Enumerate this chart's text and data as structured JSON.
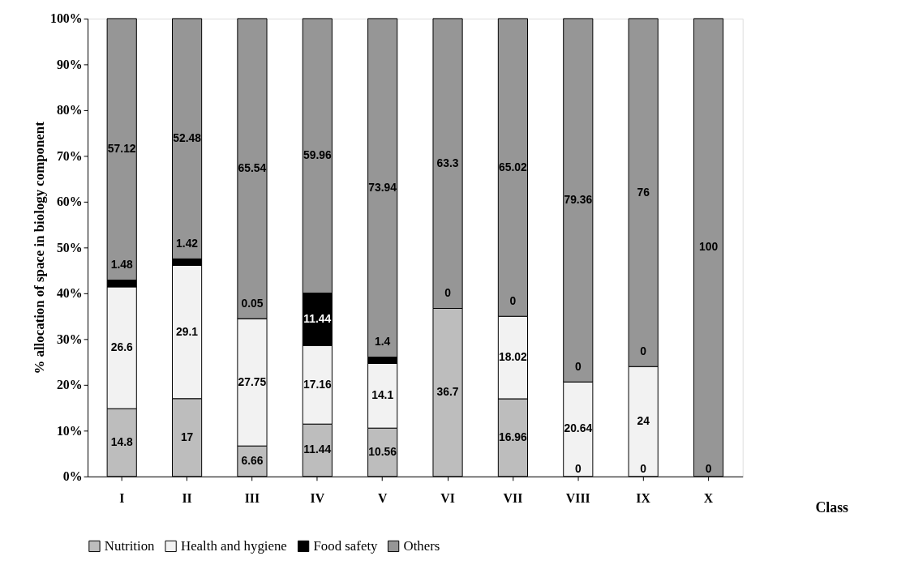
{
  "chart_data": {
    "type": "bar",
    "stacked": true,
    "ylabel": "% allocation of space in biology component",
    "xlabel": "Class",
    "categories": [
      "I",
      "II",
      "III",
      "IV",
      "V",
      "VI",
      "VII",
      "VIII",
      "IX",
      "X"
    ],
    "series": [
      {
        "name": "Nutrition",
        "color": "#bdbdbd",
        "values": [
          14.8,
          17,
          6.66,
          11.44,
          10.56,
          36.7,
          16.96,
          0,
          0,
          0
        ],
        "value_labels": [
          "14.8",
          "17",
          "6.66",
          "11.44",
          "10.56",
          "36.7",
          "16.96",
          null,
          null,
          null
        ]
      },
      {
        "name": "Health and hygiene",
        "color": "#f2f2f2",
        "values": [
          26.6,
          29.1,
          27.75,
          17.16,
          14.1,
          0,
          18.02,
          20.64,
          24,
          null
        ],
        "value_labels": [
          "26.6",
          "29.1",
          "27.75",
          "17.16",
          "14.1",
          null,
          "18.02",
          "20.64",
          "24",
          null
        ]
      },
      {
        "name": "Food safety",
        "color": "#000000",
        "values": [
          1.48,
          1.42,
          0.05,
          11.44,
          1.4,
          null,
          0,
          0,
          0,
          null
        ],
        "value_labels": [
          "1.48",
          "1.42",
          "0.05",
          "11.44",
          "1.4",
          null,
          null,
          null,
          null,
          null
        ]
      },
      {
        "name": "Others",
        "color": "#969696",
        "values": [
          57.12,
          52.48,
          65.54,
          59.96,
          73.94,
          63.3,
          65.02,
          79.36,
          76,
          100
        ],
        "value_labels": [
          "57.12",
          "52.48",
          "65.54",
          "59.96",
          "73.94",
          "63.3",
          "65.02",
          "79.36",
          "76",
          "100"
        ]
      }
    ],
    "annotations": [
      {
        "text": "0",
        "x": "VI",
        "y": 36.7
      },
      {
        "text": "0",
        "x": "VII",
        "y": 34.98
      },
      {
        "text": "0",
        "x": "VIII",
        "y": 0
      },
      {
        "text": "0",
        "x": "VIII",
        "y": 20.64
      },
      {
        "text": "0",
        "x": "IX",
        "y": 0
      },
      {
        "text": "0",
        "x": "IX",
        "y": 24
      },
      {
        "text": "0",
        "x": "X",
        "y": 0
      }
    ],
    "ylim": [
      0,
      100
    ],
    "yticks": [
      {
        "value": 0,
        "label": "0%"
      },
      {
        "value": 10,
        "label": "10%"
      },
      {
        "value": 20,
        "label": "20%"
      },
      {
        "value": 30,
        "label": "30%"
      },
      {
        "value": 40,
        "label": "40%"
      },
      {
        "value": 50,
        "label": "50%"
      },
      {
        "value": 60,
        "label": "60%"
      },
      {
        "value": 70,
        "label": "70%"
      },
      {
        "value": 80,
        "label": "80%"
      },
      {
        "value": 90,
        "label": "90%"
      },
      {
        "value": 100,
        "label": "100%"
      }
    ],
    "grid": false,
    "legend": "bottom"
  }
}
